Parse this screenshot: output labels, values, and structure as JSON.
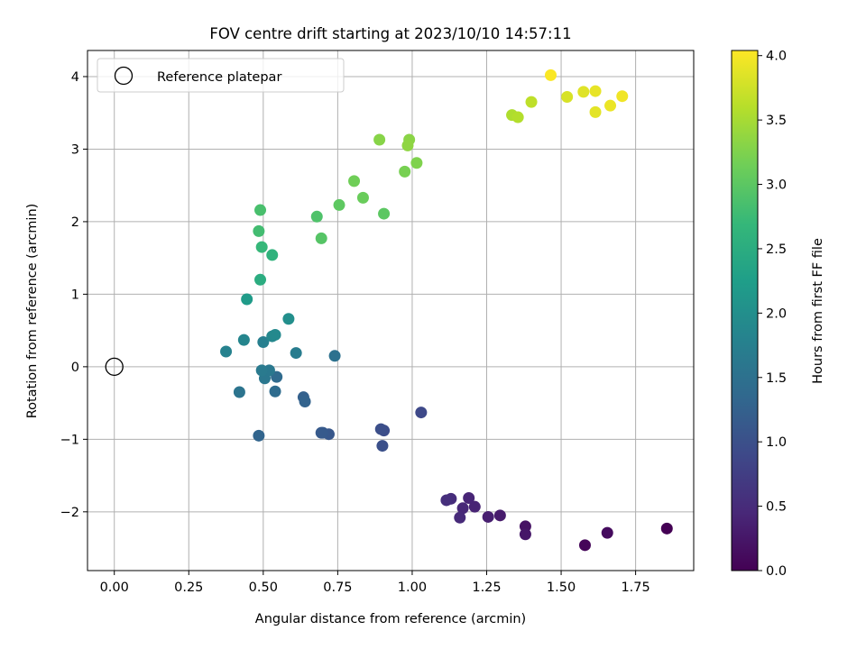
{
  "chart_data": {
    "type": "scatter",
    "title": "FOV centre drift starting at 2023/10/10 14:57:11",
    "xlabel": "Angular distance from reference (arcmin)",
    "ylabel": "Rotation from reference (arcmin)",
    "xlim": [
      -0.09,
      1.945
    ],
    "ylim": [
      -2.81,
      4.36
    ],
    "xticks": [
      0.0,
      0.25,
      0.5,
      0.75,
      1.0,
      1.25,
      1.5,
      1.75
    ],
    "xtick_labels": [
      "0.00",
      "0.25",
      "0.50",
      "0.75",
      "1.00",
      "1.25",
      "1.50",
      "1.75"
    ],
    "yticks": [
      -2,
      -1,
      0,
      1,
      2,
      3,
      4
    ],
    "ytick_labels": [
      "−2",
      "−1",
      "0",
      "1",
      "2",
      "3",
      "4"
    ],
    "grid": true,
    "legend": {
      "location": "upper-left",
      "entries": [
        "Reference platepar"
      ]
    },
    "reference_point": {
      "x": 0.0,
      "y": 0.0,
      "marker": "open-circle"
    },
    "colorbar": {
      "label": "Hours from first FF file",
      "colormap": "viridis",
      "range": [
        0.0,
        4.04
      ],
      "ticks": [
        0.0,
        0.5,
        1.0,
        1.5,
        2.0,
        2.5,
        3.0,
        3.5,
        4.0
      ],
      "tick_labels": [
        "0.0",
        "0.5",
        "1.0",
        "1.5",
        "2.0",
        "2.5",
        "3.0",
        "3.5",
        "4.0"
      ],
      "colors": [
        "#440154",
        "#482878",
        "#3e4989",
        "#31688e",
        "#26828e",
        "#1f9e89",
        "#35b779",
        "#6ece58",
        "#b5de2b",
        "#fde725"
      ]
    },
    "points": [
      {
        "x": 1.855,
        "y": -2.23,
        "t": 0.0
      },
      {
        "x": 1.58,
        "y": -2.46,
        "t": 0.06
      },
      {
        "x": 1.655,
        "y": -2.29,
        "t": 0.12
      },
      {
        "x": 1.38,
        "y": -2.2,
        "t": 0.2
      },
      {
        "x": 1.38,
        "y": -2.31,
        "t": 0.25
      },
      {
        "x": 1.295,
        "y": -2.05,
        "t": 0.3
      },
      {
        "x": 1.255,
        "y": -2.07,
        "t": 0.35
      },
      {
        "x": 1.21,
        "y": -1.93,
        "t": 0.4
      },
      {
        "x": 1.19,
        "y": -1.81,
        "t": 0.42
      },
      {
        "x": 1.17,
        "y": -1.95,
        "t": 0.45
      },
      {
        "x": 1.16,
        "y": -2.08,
        "t": 0.48
      },
      {
        "x": 1.13,
        "y": -1.82,
        "t": 0.52
      },
      {
        "x": 1.115,
        "y": -1.84,
        "t": 0.55
      },
      {
        "x": 1.03,
        "y": -0.63,
        "t": 0.9
      },
      {
        "x": 0.905,
        "y": -0.88,
        "t": 0.95
      },
      {
        "x": 0.895,
        "y": -0.86,
        "t": 0.98
      },
      {
        "x": 0.9,
        "y": -1.09,
        "t": 1.0
      },
      {
        "x": 0.72,
        "y": -0.93,
        "t": 1.1
      },
      {
        "x": 0.7,
        "y": -0.91,
        "t": 1.13
      },
      {
        "x": 0.695,
        "y": -0.91,
        "t": 1.15
      },
      {
        "x": 0.635,
        "y": -0.42,
        "t": 1.25
      },
      {
        "x": 0.64,
        "y": -0.48,
        "t": 1.27
      },
      {
        "x": 0.485,
        "y": -0.95,
        "t": 1.3
      },
      {
        "x": 0.545,
        "y": -0.14,
        "t": 1.4
      },
      {
        "x": 0.54,
        "y": -0.34,
        "t": 1.42
      },
      {
        "x": 0.74,
        "y": 0.15,
        "t": 1.5
      },
      {
        "x": 0.42,
        "y": -0.35,
        "t": 1.55
      },
      {
        "x": 0.505,
        "y": -0.16,
        "t": 1.6
      },
      {
        "x": 0.52,
        "y": -0.05,
        "t": 1.62
      },
      {
        "x": 0.495,
        "y": -0.05,
        "t": 1.65
      },
      {
        "x": 0.61,
        "y": 0.19,
        "t": 1.7
      },
      {
        "x": 0.5,
        "y": 0.34,
        "t": 1.75
      },
      {
        "x": 0.375,
        "y": 0.21,
        "t": 1.8
      },
      {
        "x": 0.435,
        "y": 0.37,
        "t": 1.85
      },
      {
        "x": 0.53,
        "y": 0.42,
        "t": 1.88
      },
      {
        "x": 0.54,
        "y": 0.44,
        "t": 1.9
      },
      {
        "x": 0.585,
        "y": 0.66,
        "t": 2.0
      },
      {
        "x": 0.445,
        "y": 0.93,
        "t": 2.2
      },
      {
        "x": 0.49,
        "y": 1.2,
        "t": 2.5
      },
      {
        "x": 0.53,
        "y": 1.54,
        "t": 2.6
      },
      {
        "x": 0.495,
        "y": 1.65,
        "t": 2.7
      },
      {
        "x": 0.485,
        "y": 1.87,
        "t": 2.8
      },
      {
        "x": 0.49,
        "y": 2.16,
        "t": 2.85
      },
      {
        "x": 0.68,
        "y": 2.07,
        "t": 2.9
      },
      {
        "x": 0.695,
        "y": 1.77,
        "t": 2.95
      },
      {
        "x": 0.905,
        "y": 2.11,
        "t": 3.0
      },
      {
        "x": 0.755,
        "y": 2.23,
        "t": 3.02
      },
      {
        "x": 0.835,
        "y": 2.33,
        "t": 3.1
      },
      {
        "x": 0.805,
        "y": 2.56,
        "t": 3.15
      },
      {
        "x": 0.975,
        "y": 2.69,
        "t": 3.2
      },
      {
        "x": 1.015,
        "y": 2.81,
        "t": 3.25
      },
      {
        "x": 0.89,
        "y": 3.13,
        "t": 3.3
      },
      {
        "x": 0.99,
        "y": 3.13,
        "t": 3.32
      },
      {
        "x": 0.985,
        "y": 3.05,
        "t": 3.35
      },
      {
        "x": 1.335,
        "y": 3.47,
        "t": 3.55
      },
      {
        "x": 1.355,
        "y": 3.44,
        "t": 3.58
      },
      {
        "x": 1.4,
        "y": 3.65,
        "t": 3.65
      },
      {
        "x": 1.52,
        "y": 3.72,
        "t": 3.8
      },
      {
        "x": 1.575,
        "y": 3.79,
        "t": 3.85
      },
      {
        "x": 1.615,
        "y": 3.51,
        "t": 3.88
      },
      {
        "x": 1.615,
        "y": 3.8,
        "t": 3.9
      },
      {
        "x": 1.665,
        "y": 3.6,
        "t": 3.93
      },
      {
        "x": 1.705,
        "y": 3.73,
        "t": 3.96
      },
      {
        "x": 1.465,
        "y": 4.02,
        "t": 4.02
      }
    ]
  }
}
